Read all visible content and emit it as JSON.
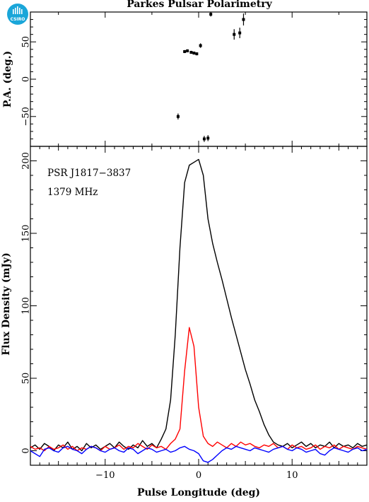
{
  "header": {
    "title": "Parkes Pulsar Polarimetry",
    "logo_text": "CSIRO"
  },
  "colors": {
    "total_intensity": "#000000",
    "linear": "#ff0000",
    "circular": "#0000ff",
    "logo": "#1aa6d9"
  },
  "chart_data": [
    {
      "type": "scatter",
      "panel": "top",
      "ylabel": "P.A. (deg.)",
      "xlim": [
        -18,
        18
      ],
      "ylim": [
        -90,
        90
      ],
      "yticks": [
        -50,
        0,
        50
      ],
      "ytick_labels": [
        "−50",
        "0",
        "50"
      ],
      "points": [
        {
          "x": -2.2,
          "y": -50,
          "err": 4
        },
        {
          "x": -1.5,
          "y": 37,
          "err": 2
        },
        {
          "x": -1.2,
          "y": 38,
          "err": 2
        },
        {
          "x": -0.8,
          "y": 36,
          "err": 2
        },
        {
          "x": -0.5,
          "y": 35,
          "err": 2
        },
        {
          "x": -0.2,
          "y": 34,
          "err": 2
        },
        {
          "x": 0.2,
          "y": 45,
          "err": 3
        },
        {
          "x": 0.6,
          "y": -80,
          "err": 4
        },
        {
          "x": 1.0,
          "y": -79,
          "err": 4
        },
        {
          "x": 1.3,
          "y": 87,
          "err": 3
        },
        {
          "x": 3.8,
          "y": 60,
          "err": 7
        },
        {
          "x": 4.4,
          "y": 62,
          "err": 7
        },
        {
          "x": 4.8,
          "y": 80,
          "err": 8
        }
      ]
    },
    {
      "type": "line",
      "panel": "bottom",
      "xlabel": "Pulse Longitude (deg)",
      "ylabel": "Flux Density (mJy)",
      "xlim": [
        -18,
        18
      ],
      "ylim": [
        -10,
        210
      ],
      "xticks": [
        -10,
        0,
        10
      ],
      "xtick_labels": [
        "−10",
        "0",
        "10"
      ],
      "yticks": [
        0,
        50,
        100,
        150,
        200
      ],
      "ytick_labels": [
        "0",
        "50",
        "100",
        "150",
        "200"
      ],
      "annotations": [
        "PSR J1817−3837",
        "1379 MHz"
      ],
      "x": [
        -18,
        -17.5,
        -17,
        -16.5,
        -16,
        -15.5,
        -15,
        -14.5,
        -14,
        -13.5,
        -13,
        -12.5,
        -12,
        -11.5,
        -11,
        -10.5,
        -10,
        -9.5,
        -9,
        -8.5,
        -8,
        -7.5,
        -7,
        -6.5,
        -6,
        -5.5,
        -5,
        -4.5,
        -4,
        -3.5,
        -3,
        -2.5,
        -2,
        -1.5,
        -1,
        -0.5,
        0,
        0.5,
        1,
        1.5,
        2,
        2.5,
        3,
        3.5,
        4,
        4.5,
        5,
        5.5,
        6,
        6.5,
        7,
        7.5,
        8,
        8.5,
        9,
        9.5,
        10,
        10.5,
        11,
        11.5,
        12,
        12.5,
        13,
        13.5,
        14,
        14.5,
        15,
        15.5,
        16,
        16.5,
        17,
        17.5,
        18
      ],
      "series": [
        {
          "color": "#000000",
          "values": [
            2,
            4,
            1,
            5,
            3,
            0,
            4,
            2,
            6,
            1,
            3,
            0,
            5,
            2,
            4,
            1,
            3,
            5,
            2,
            6,
            3,
            1,
            4,
            2,
            7,
            3,
            5,
            2,
            8,
            15,
            35,
            80,
            140,
            185,
            197,
            199,
            201,
            190,
            160,
            143,
            130,
            118,
            105,
            92,
            80,
            68,
            56,
            46,
            35,
            27,
            18,
            11,
            6,
            4,
            3,
            5,
            2,
            4,
            6,
            3,
            5,
            2,
            4,
            3,
            6,
            2,
            5,
            3,
            4,
            2,
            5,
            3,
            4
          ]
        },
        {
          "color": "#ff0000",
          "values": [
            3,
            1,
            2,
            0,
            3,
            1,
            2,
            4,
            1,
            3,
            0,
            2,
            1,
            3,
            2,
            0,
            3,
            1,
            2,
            4,
            1,
            3,
            2,
            5,
            3,
            1,
            4,
            2,
            3,
            1,
            5,
            8,
            15,
            55,
            85,
            72,
            30,
            10,
            5,
            3,
            6,
            4,
            2,
            5,
            3,
            6,
            4,
            5,
            3,
            2,
            4,
            3,
            5,
            2,
            3,
            1,
            4,
            2,
            3,
            1,
            2,
            4,
            1,
            3,
            2,
            4,
            1,
            3,
            2,
            1,
            3,
            2,
            1
          ]
        },
        {
          "color": "#0000ff",
          "values": [
            0,
            -2,
            -4,
            1,
            2,
            0,
            -1,
            2,
            3,
            1,
            0,
            -2,
            1,
            3,
            2,
            0,
            -1,
            1,
            2,
            0,
            -1,
            2,
            1,
            -2,
            0,
            2,
            1,
            -1,
            0,
            1,
            -1,
            0,
            2,
            3,
            1,
            0,
            -2,
            -7,
            -8,
            -6,
            -3,
            0,
            2,
            1,
            3,
            2,
            1,
            0,
            2,
            1,
            0,
            -1,
            1,
            2,
            3,
            1,
            0,
            2,
            1,
            -1,
            0,
            1,
            -2,
            -3,
            0,
            2,
            1,
            0,
            -1,
            1,
            2,
            0,
            1
          ]
        }
      ]
    }
  ]
}
